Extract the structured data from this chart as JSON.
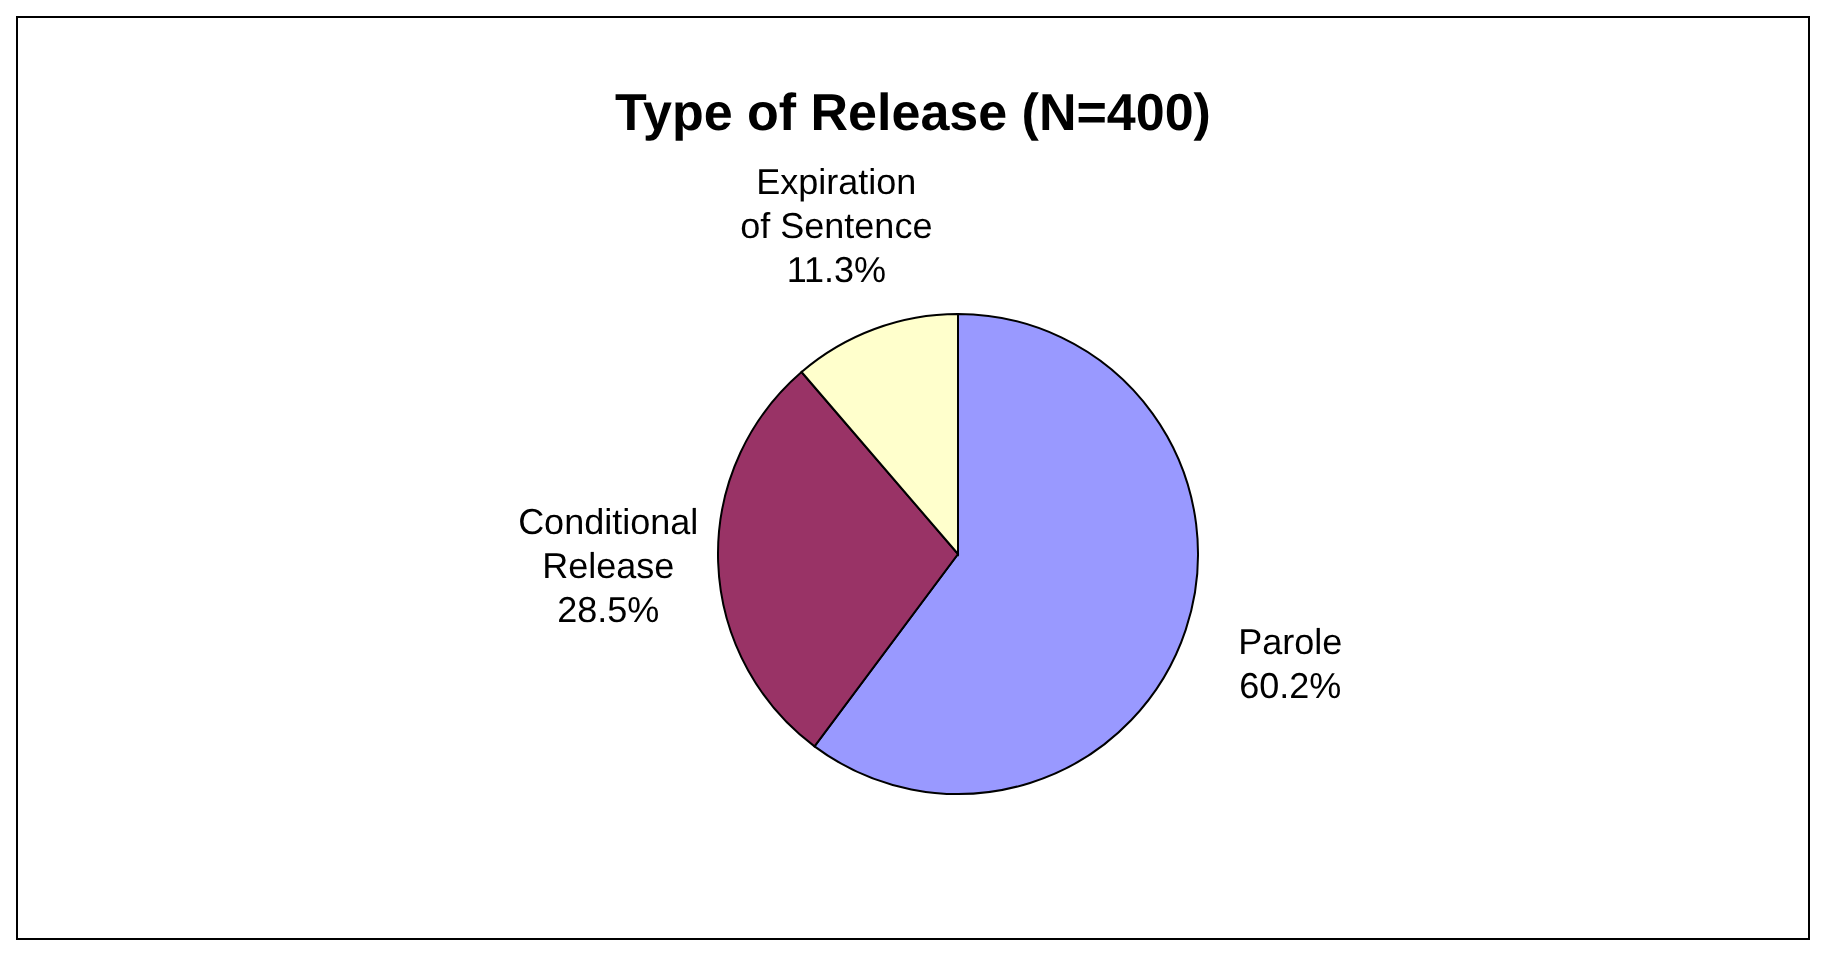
{
  "chart_data": {
    "type": "pie",
    "title": "Type of Release (N=400)",
    "categories": [
      "Parole",
      "Conditional Release",
      "Expiration of Sentence"
    ],
    "values": [
      60.2,
      28.5,
      11.3
    ],
    "colors": [
      "#9999ff",
      "#993366",
      "#ffffcc"
    ],
    "value_labels": [
      "60.2%",
      "28.5%",
      "11.3%"
    ],
    "legend": false
  }
}
